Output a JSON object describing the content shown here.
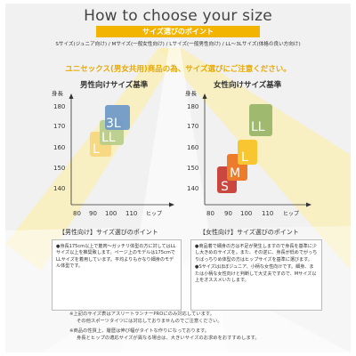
{
  "header": {
    "title": "How to choose your size",
    "subtitle": "サイズ選びのポイント",
    "category_line": "Sサイズ(ジュニア向け) / Mサイズ(一般女性向け) / Lサイズ(一般男性向け) / LL～3Lサイズ(体格の良い方向け)"
  },
  "notice": "ユニセックス(男女共用)商品の為、サイズ選びにご注意ください。",
  "charts": [
    {
      "title": "男性向けサイズ基準",
      "ylabel": "身長",
      "xlabel": "ヒップ",
      "y_ticks": [
        "180",
        "170",
        "160",
        "150",
        "140"
      ],
      "x_ticks": [
        "80",
        "90",
        "100",
        "110"
      ],
      "boxes": [
        {
          "label": "L",
          "color": "#f6d77e"
        },
        {
          "label": "LL",
          "color": "#b7cd8c"
        },
        {
          "label": "3L",
          "color": "#6d98c9"
        }
      ]
    },
    {
      "title": "女性向けサイズ基準",
      "ylabel": "身長",
      "xlabel": "ヒップ",
      "y_ticks": [
        "180",
        "170",
        "160",
        "150",
        "140"
      ],
      "x_ticks": [
        "80",
        "90",
        "100",
        "110"
      ],
      "boxes": [
        {
          "label": "S",
          "color": "#c9473e"
        },
        {
          "label": "M",
          "color": "#ec7c2c"
        },
        {
          "label": "L",
          "color": "#f7c631"
        },
        {
          "label": "LL",
          "color": "#9fb96f"
        }
      ]
    }
  ],
  "tips": {
    "male": {
      "head": "【男性向け】サイズ選びのポイント",
      "lines": [
        "●身長175cm以上で筋肉～ガッチリ体型の方に対してはLLサイズ以上を推奨致します。ページ上のモデルは175cmでLLサイズを着用しています。平均よりもかなり細身のモデル体型です。"
      ]
    },
    "female": {
      "head": "【女性向け】サイズ選びのポイント",
      "lines": [
        "●商品着で細身の方は不足が発生しますので身長を基準に少し大きめのサイズを。また、その逆に、身長が低めでがっちりばっちりめ体型の方はヒップサイズを基準に選びます。",
        "●Sサイズはほぼジュニア、小柄な女性向けです。細身、または小柄な女性向けと判断して大丈夫ですので、Mサイズ以上をオススメいたします。"
      ]
    }
  },
  "footnotes": [
    "※上記のサイズ表はアスリートランナーPROにのみ対応しています。",
    "その他スポーツタイツには対応しておりませんのでご注意ください。",
    "※商品の性質上、履歴は伸び幅がタイトな作りになっております。",
    "身長とヒップの適応サイズが異なる場合は、大きいサイズのお求めをおすすめします。"
  ]
}
